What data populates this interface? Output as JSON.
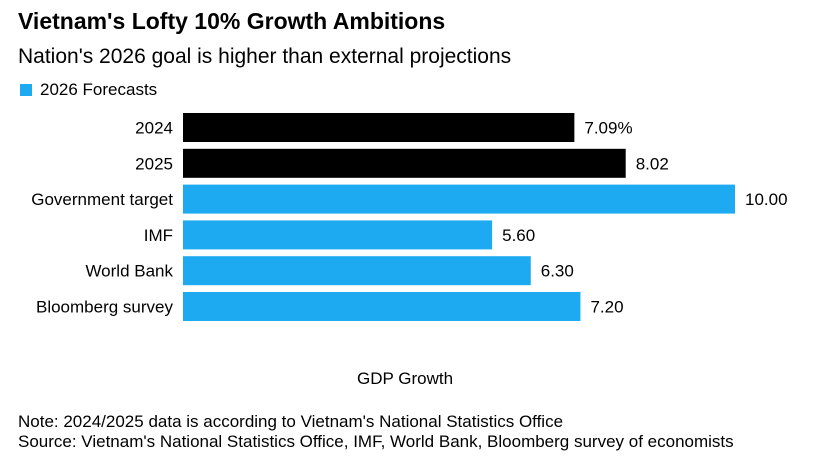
{
  "title": "Vietnam's Lofty 10% Growth Ambitions",
  "subtitle": "Nation's 2026 goal is higher than external projections",
  "legend": {
    "label": "2026 Forecasts",
    "color": "#1eaaf1"
  },
  "colors": {
    "actual": "#000000",
    "forecast": "#1eaaf1"
  },
  "chart_data": {
    "type": "bar",
    "orientation": "horizontal",
    "title": "Vietnam's Lofty 10% Growth Ambitions",
    "subtitle": "Nation's 2026 goal is higher than external projections",
    "categories": [
      "2024",
      "2025",
      "Government target",
      "IMF",
      "World Bank",
      "Bloomberg survey"
    ],
    "values": [
      7.09,
      8.02,
      10.0,
      5.6,
      6.3,
      7.2
    ],
    "value_labels": [
      "7.09%",
      "8.02",
      "10.00",
      "5.60",
      "6.30",
      "7.20"
    ],
    "groups": [
      "actual",
      "actual",
      "forecast",
      "forecast",
      "forecast",
      "forecast"
    ],
    "legend": [
      "2026 Forecasts"
    ],
    "xlabel": "GDP Growth",
    "ylabel": "",
    "xlim": [
      0,
      10
    ],
    "grid": false
  },
  "footer": {
    "note": "Note: 2024/2025 data is according to Vietnam's National Statistics Office",
    "source": "Source: Vietnam's National Statistics Office, IMF, World Bank, Bloomberg survey of economists"
  }
}
